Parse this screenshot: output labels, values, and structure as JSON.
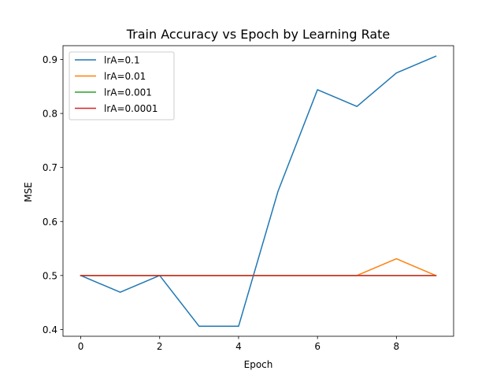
{
  "chart_data": {
    "type": "line",
    "title": "Train Accuracy vs Epoch by Learning Rate",
    "xlabel": "Epoch",
    "ylabel": "MSE",
    "xlim": [
      -0.45,
      9.45
    ],
    "ylim": [
      0.3875,
      0.9255
    ],
    "xticks": [
      0,
      2,
      4,
      6,
      8
    ],
    "yticks": [
      0.4,
      0.5,
      0.6,
      0.7,
      0.8,
      0.9
    ],
    "ytick_labels": [
      "0.4",
      "0.5",
      "0.6",
      "0.7",
      "0.8",
      "0.9"
    ],
    "grid": false,
    "legend_position": "top-left",
    "x": [
      0,
      1,
      2,
      3,
      4,
      5,
      6,
      7,
      8,
      9
    ],
    "series": [
      {
        "name": "lrA=0.1",
        "color": "#1f77b4",
        "values": [
          0.5,
          0.469,
          0.5,
          0.406,
          0.406,
          0.656,
          0.844,
          0.813,
          0.875,
          0.906
        ]
      },
      {
        "name": "lrA=0.01",
        "color": "#ff7f0e",
        "values": [
          0.5,
          0.5,
          0.5,
          0.5,
          0.5,
          0.5,
          0.5,
          0.5,
          0.531,
          0.5
        ]
      },
      {
        "name": "lrA=0.001",
        "color": "#2ca02c",
        "values": [
          0.5,
          0.5,
          0.5,
          0.5,
          0.5,
          0.5,
          0.5,
          0.5,
          0.5,
          0.5
        ]
      },
      {
        "name": "lrA=0.0001",
        "color": "#d62728",
        "values": [
          0.5,
          0.5,
          0.5,
          0.5,
          0.5,
          0.5,
          0.5,
          0.5,
          0.5,
          0.5
        ]
      }
    ]
  }
}
